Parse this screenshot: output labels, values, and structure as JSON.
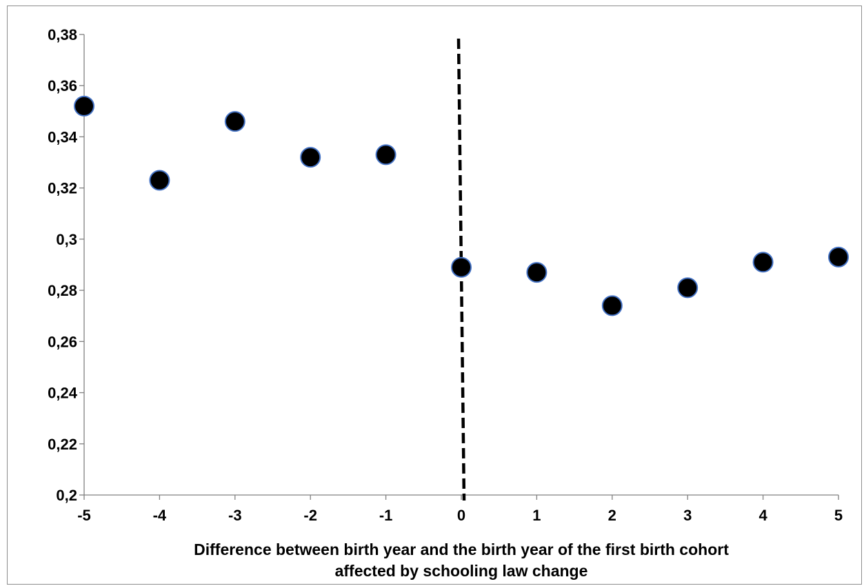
{
  "chart_data": {
    "type": "scatter",
    "title": "",
    "xlabel_lines": [
      "Difference between birth year and the birth year of the first birth cohort",
      "affected by schooling law change"
    ],
    "ylabel": "",
    "x_ticks": [
      "-5",
      "-4",
      "-3",
      "-2",
      "-1",
      "0",
      "1",
      "2",
      "3",
      "4",
      "5"
    ],
    "y_ticks": [
      "0,2",
      "0,22",
      "0,24",
      "0,26",
      "0,28",
      "0,3",
      "0,32",
      "0,34",
      "0,36",
      "0,38"
    ],
    "xlim": [
      -5,
      5
    ],
    "ylim": [
      0.2,
      0.38
    ],
    "grid": false,
    "legend": "none",
    "marker_color": "#000000",
    "marker_edge_color": "#4472c4",
    "reference_line": {
      "x": 0,
      "style": "dashed",
      "color": "#000000"
    },
    "points": [
      {
        "x": -5,
        "y": 0.352
      },
      {
        "x": -4,
        "y": 0.323
      },
      {
        "x": -3,
        "y": 0.346
      },
      {
        "x": -2,
        "y": 0.332
      },
      {
        "x": -1,
        "y": 0.333
      },
      {
        "x": 0,
        "y": 0.289
      },
      {
        "x": 1,
        "y": 0.287
      },
      {
        "x": 2,
        "y": 0.274
      },
      {
        "x": 3,
        "y": 0.281
      },
      {
        "x": 4,
        "y": 0.291
      },
      {
        "x": 5,
        "y": 0.293
      }
    ]
  }
}
